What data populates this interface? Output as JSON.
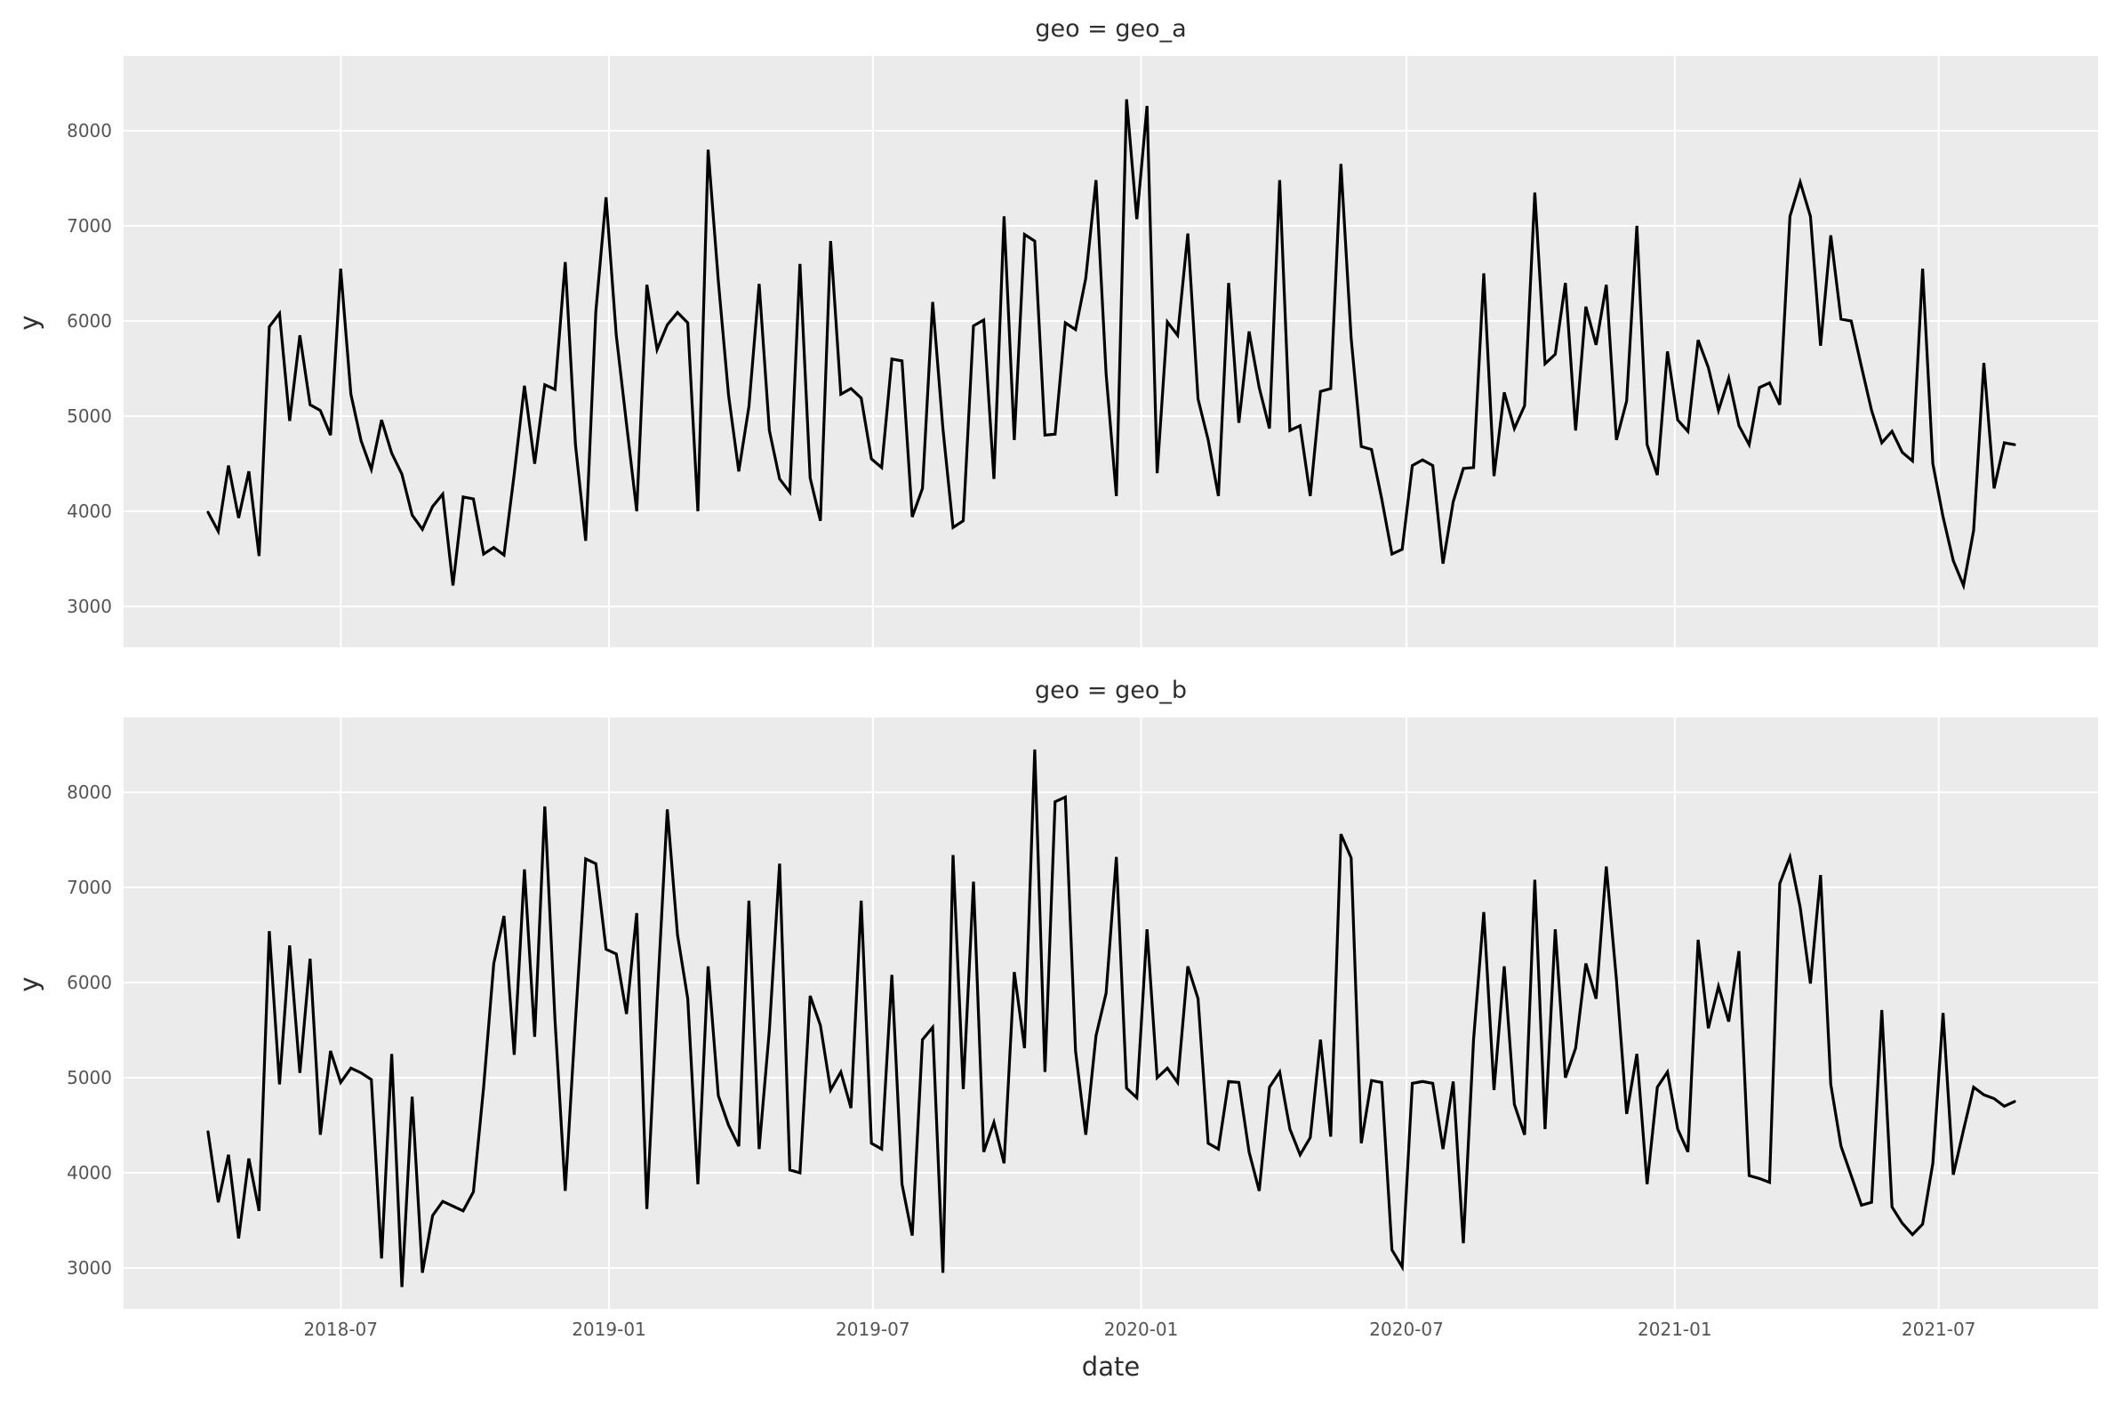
{
  "figure": {
    "panel_bg": "#ebebeb",
    "grid_color": "#ffffff",
    "line_color": "#000000",
    "tick_label_color": "#555555",
    "text_color": "#2e2e2e"
  },
  "xlabel": "date",
  "ylabel": "y",
  "x_ticks": [
    "2018-07",
    "2019-01",
    "2019-07",
    "2020-01",
    "2020-07",
    "2021-01",
    "2021-07"
  ],
  "y_ticks": [
    "3000",
    "4000",
    "5000",
    "6000",
    "7000",
    "8000"
  ],
  "chart_data": [
    {
      "type": "line",
      "title": "geo = geo_a",
      "facet_variable": "geo",
      "facet_value": "geo_a",
      "xlabel": "date",
      "ylabel": "y",
      "x_start_date": "2018-04-01",
      "x_frequency": "weekly",
      "y_axis_ticks": [
        3000,
        4000,
        5000,
        6000,
        7000,
        8000
      ],
      "values": [
        3990,
        3790,
        4480,
        3930,
        4420,
        3530,
        5940,
        6080,
        4950,
        5850,
        5120,
        5060,
        4800,
        6550,
        5230,
        4740,
        4440,
        4960,
        4610,
        4390,
        3960,
        3810,
        4050,
        4180,
        3220,
        4150,
        4130,
        3550,
        3620,
        3540,
        4390,
        5320,
        4500,
        5330,
        5280,
        6620,
        4700,
        3690,
        6100,
        7300,
        5850,
        4920,
        4000,
        6380,
        5700,
        5960,
        6090,
        5980,
        4000,
        7800,
        6420,
        5220,
        4420,
        5100,
        6390,
        4850,
        4340,
        4200,
        6600,
        4350,
        3900,
        6840,
        5230,
        5290,
        5190,
        4550,
        4460,
        5600,
        5580,
        3940,
        4240,
        6200,
        4870,
        3830,
        3900,
        5950,
        6010,
        4340,
        7100,
        4750,
        6910,
        6840,
        4800,
        4810,
        5980,
        5910,
        6450,
        7480,
        5440,
        4160,
        8330,
        7070,
        8260,
        4400,
        5990,
        5850,
        6920,
        5180,
        4750,
        4160,
        6400,
        4930,
        5890,
        5300,
        4870,
        7480,
        4850,
        4900,
        4160,
        5260,
        5290,
        7650,
        5820,
        4680,
        4650,
        4130,
        3550,
        3600,
        4480,
        4540,
        4480,
        3450,
        4100,
        4450,
        4460,
        6500,
        4370,
        5250,
        4870,
        5110,
        7350,
        5550,
        5650,
        6400,
        4850,
        6150,
        5750,
        6380,
        4750,
        5160,
        7000,
        4700,
        4380,
        5680,
        4960,
        4840,
        5800,
        5510,
        5060,
        5400,
        4900,
        4700,
        5300,
        5350,
        5120,
        7100,
        7460,
        7100,
        5740,
        6900,
        6020,
        6000,
        5520,
        5060,
        4720,
        4840,
        4620,
        4530,
        6550,
        4500,
        3940,
        3480,
        3220,
        3800,
        5560,
        4240,
        4720,
        4700
      ]
    },
    {
      "type": "line",
      "title": "geo = geo_b",
      "facet_variable": "geo",
      "facet_value": "geo_b",
      "xlabel": "date",
      "ylabel": "y",
      "x_start_date": "2018-04-01",
      "x_frequency": "weekly",
      "y_axis_ticks": [
        3000,
        4000,
        5000,
        6000,
        7000,
        8000
      ],
      "values": [
        4430,
        3690,
        4190,
        3310,
        4150,
        3600,
        6540,
        4930,
        6390,
        5050,
        6250,
        4400,
        5280,
        4950,
        5100,
        5050,
        4980,
        3100,
        5250,
        2800,
        4800,
        2950,
        3550,
        3700,
        3650,
        3600,
        3800,
        4900,
        6200,
        6700,
        5240,
        7190,
        5430,
        7850,
        5600,
        3810,
        5600,
        7300,
        7250,
        6350,
        6300,
        5670,
        6730,
        3620,
        5800,
        7820,
        6500,
        5830,
        3880,
        6170,
        4810,
        4500,
        4280,
        6860,
        4250,
        5500,
        7250,
        4030,
        4000,
        5860,
        5550,
        4870,
        5060,
        4680,
        6860,
        4310,
        4250,
        6080,
        3880,
        3340,
        5400,
        5530,
        2950,
        7340,
        4880,
        7060,
        4220,
        4530,
        4100,
        6110,
        5310,
        8450,
        5060,
        7900,
        7950,
        5280,
        4400,
        5440,
        5890,
        7320,
        4890,
        4790,
        6560,
        5000,
        5100,
        4950,
        6170,
        5830,
        4310,
        4250,
        4960,
        4950,
        4220,
        3810,
        4900,
        5060,
        4460,
        4190,
        4370,
        5400,
        4380,
        7560,
        7310,
        4310,
        4970,
        4950,
        3190,
        3010,
        4940,
        4960,
        4940,
        4250,
        4960,
        3260,
        5400,
        6740,
        4870,
        6170,
        4720,
        4400,
        7080,
        4460,
        6560,
        5000,
        5310,
        6200,
        5830,
        7220,
        6030,
        4620,
        5250,
        3880,
        4900,
        5060,
        4460,
        4220,
        6450,
        5520,
        5960,
        5590,
        6330,
        3970,
        3940,
        3900,
        7040,
        7320,
        6790,
        5990,
        7130,
        4930,
        4280,
        3970,
        3660,
        3690,
        5710,
        3640,
        3470,
        3350,
        3460,
        4100,
        5680,
        3980,
        4450,
        4900,
        4820,
        4780,
        4700,
        4750
      ]
    }
  ]
}
